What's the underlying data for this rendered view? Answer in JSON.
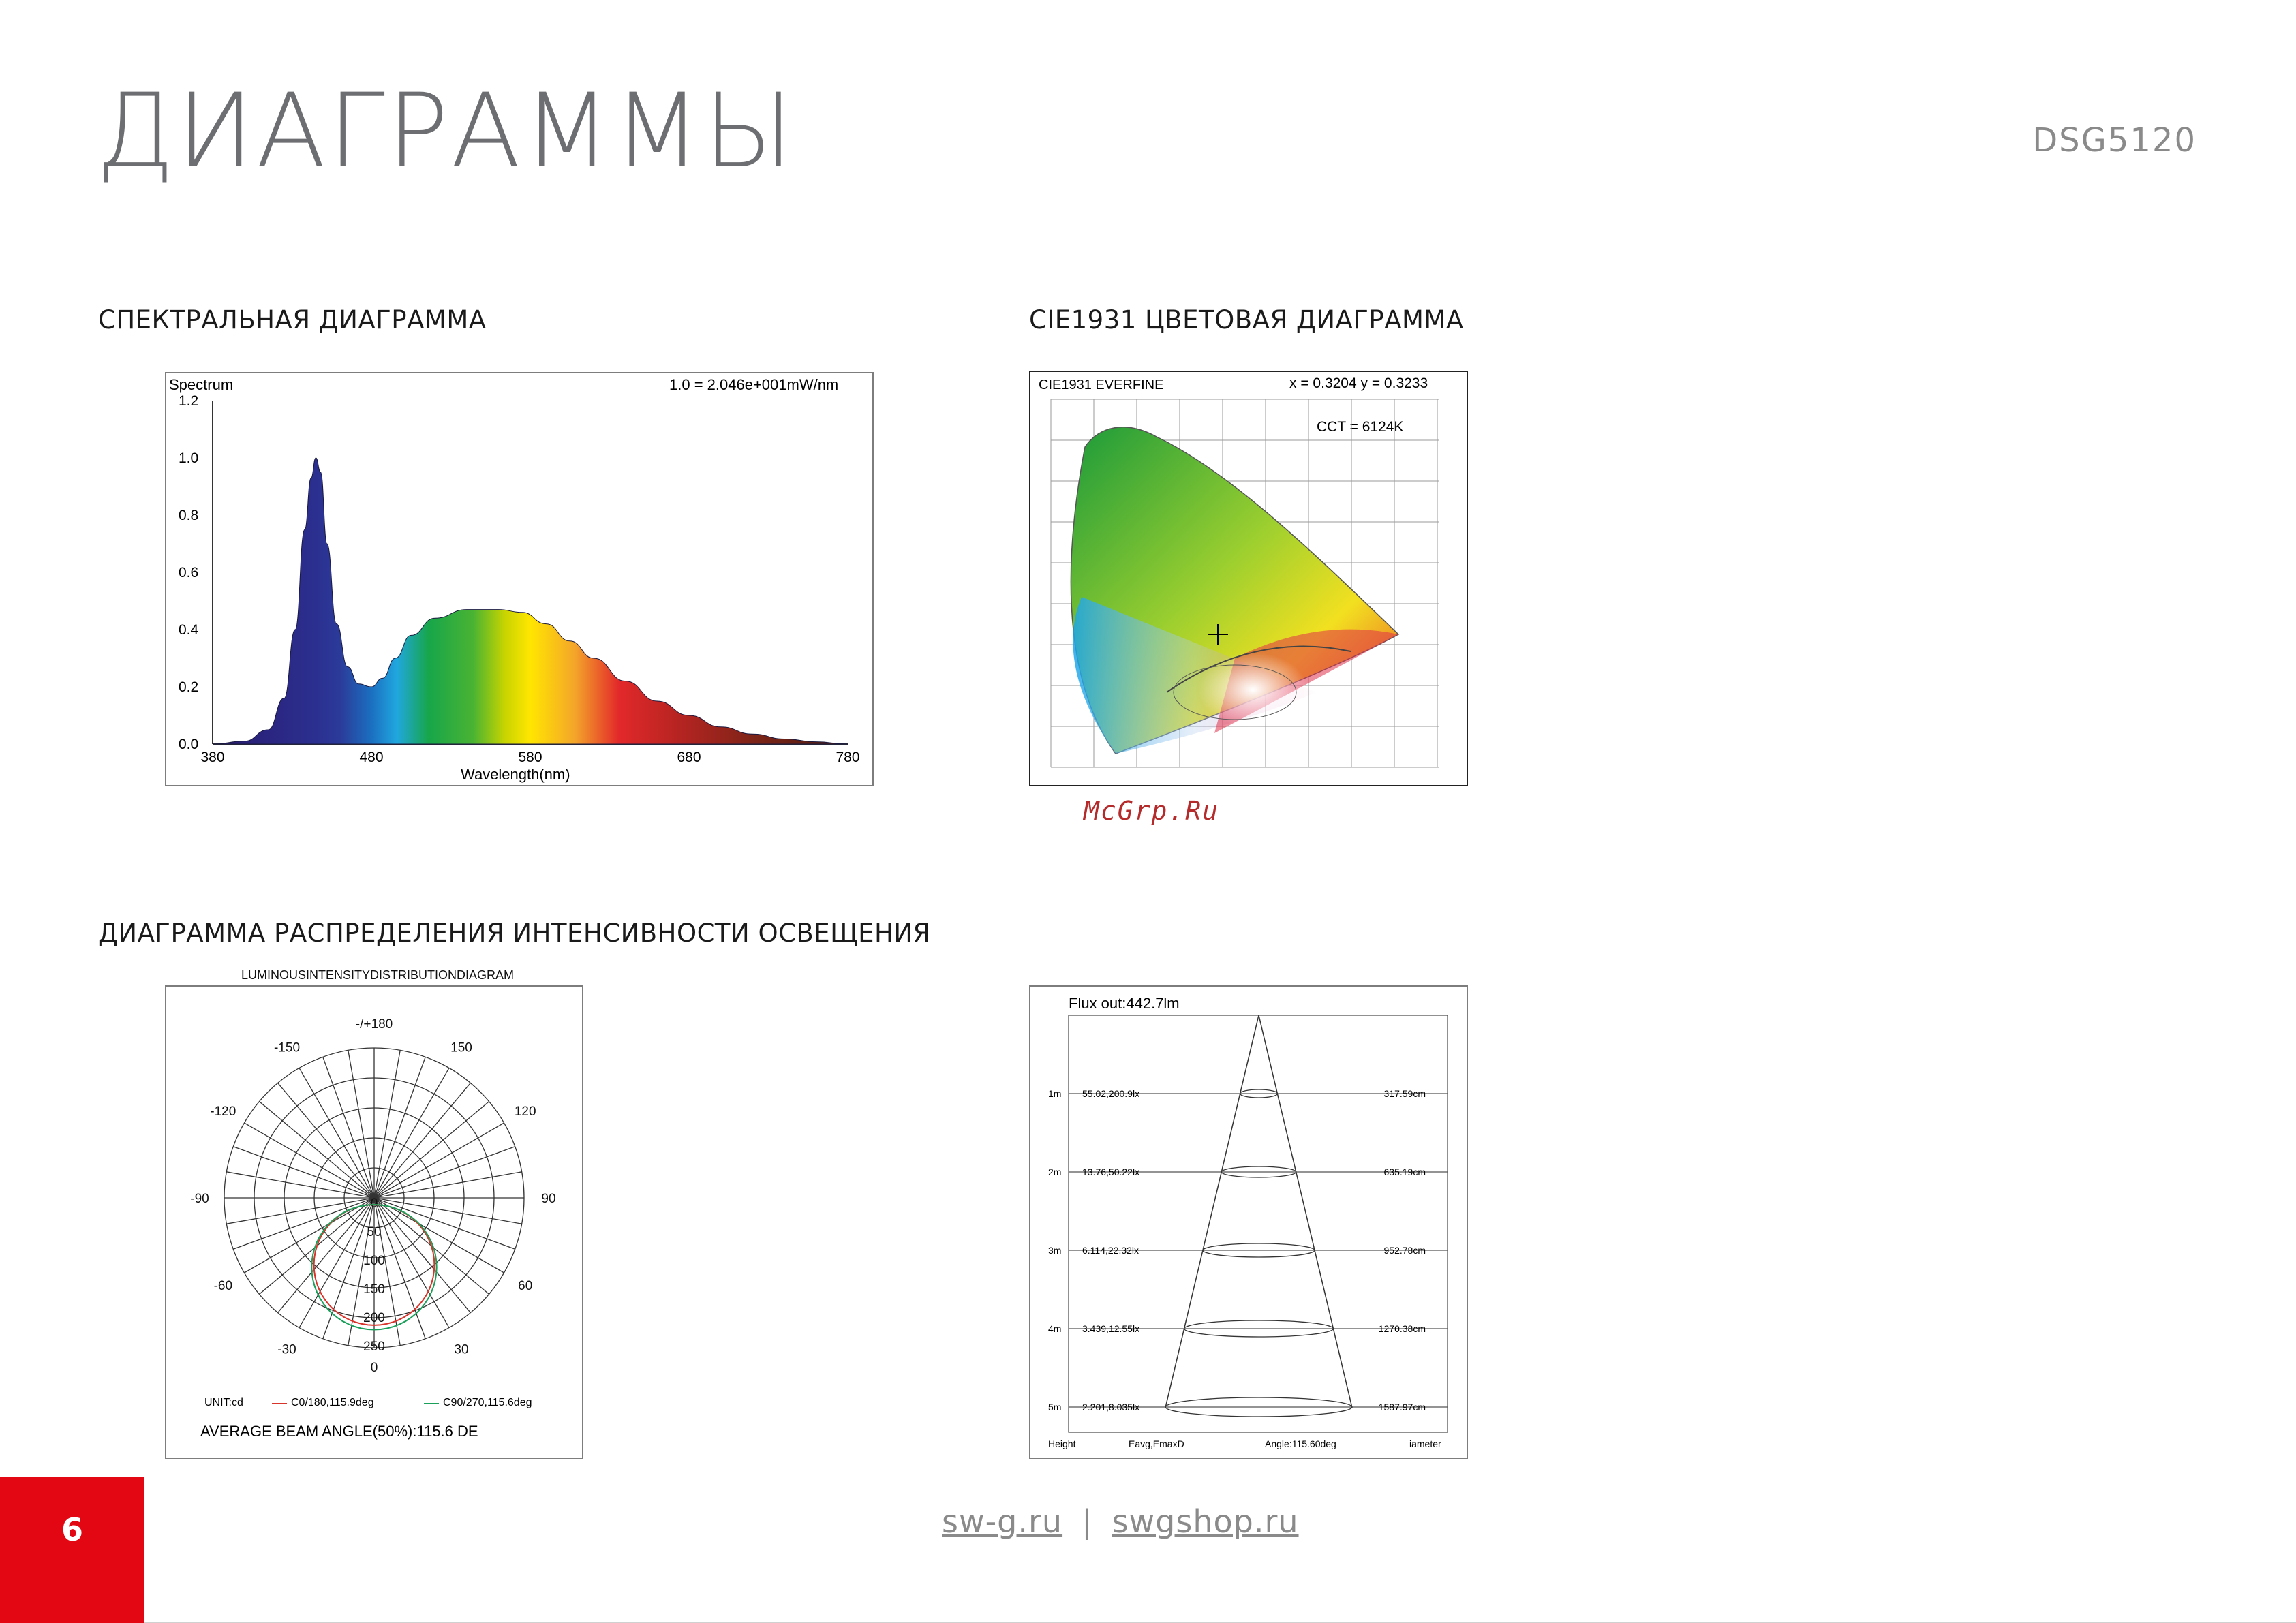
{
  "header": {
    "title": "ДИАГРАММЫ",
    "model": "DSG5120"
  },
  "sections": {
    "spectrum_title": "СПЕКТРАЛЬНАЯ ДИАГРАММА",
    "cie_title": "CIE1931 ЦВЕТОВАЯ ДИАГРАММА",
    "intensity_title": "ДИАГРАММА РАСПРЕДЕЛЕНИЯ ИНТЕНСИВНОСТИ ОСВЕЩЕНИЯ"
  },
  "watermark": "McGrp.Ru",
  "footer": {
    "page_number": "6",
    "link1": "sw-g.ru",
    "separator": "|",
    "link2": "swgshop.ru"
  },
  "chart_data": [
    {
      "type": "area",
      "label_left": "Spectrum",
      "label_right": "1.0 = 2.046e+001mW/nm",
      "xlabel": "Wavelength(nm)",
      "x_ticks": [
        "380",
        "480",
        "580",
        "680",
        "780"
      ],
      "y_ticks": [
        "0.0",
        "0.2",
        "0.4",
        "0.6",
        "0.8",
        "1.0",
        "1.2"
      ],
      "xlim": [
        380,
        780
      ],
      "ylim": [
        0,
        1.2
      ],
      "x": [
        380,
        400,
        415,
        425,
        432,
        438,
        442,
        445,
        448,
        452,
        458,
        465,
        472,
        480,
        487,
        495,
        505,
        520,
        540,
        560,
        575,
        590,
        605,
        620,
        640,
        660,
        680,
        700,
        720,
        740,
        760,
        780
      ],
      "y": [
        0.0,
        0.01,
        0.05,
        0.16,
        0.4,
        0.75,
        0.93,
        1.0,
        0.95,
        0.7,
        0.42,
        0.27,
        0.21,
        0.2,
        0.23,
        0.3,
        0.38,
        0.44,
        0.47,
        0.47,
        0.46,
        0.42,
        0.36,
        0.3,
        0.22,
        0.15,
        0.1,
        0.06,
        0.035,
        0.018,
        0.008,
        0.0
      ]
    },
    {
      "type": "other",
      "header_left": "CIE1931  EVERFINE",
      "header_coords": "x = 0.3204 y     = 0.3233",
      "header_cct": "CCT    = 6124K",
      "point": {
        "x": 0.3204,
        "y": 0.3233
      }
    },
    {
      "type": "other",
      "caption": "LUMINOUSINTENSITYDISTRIBUTIONDIAGRAM",
      "angle_labels": [
        "-/+180",
        "-150",
        "150",
        "-120",
        "120",
        "-90",
        "90",
        "-60",
        "60",
        "-30",
        "30",
        "0"
      ],
      "radial_labels": [
        "0",
        "50",
        "100",
        "150",
        "200",
        "250"
      ],
      "legend_unit": "UNIT:cd",
      "legend_c0": "C0/180,115.9deg",
      "legend_c90": "C90/270,115.6deg",
      "legend_colors": {
        "c0": "#d9342b",
        "c90": "#1aa05a"
      },
      "footer_text": "AVERAGE BEAM ANGLE(50%):115.6 DE",
      "max_intensity_cd": 210
    },
    {
      "type": "other",
      "title": "Flux out:442.7lm",
      "rows": [
        {
          "height": "1m",
          "eavg": "55.02,200.9lx",
          "diameter": "317.59cm"
        },
        {
          "height": "2m",
          "eavg": "13.76,50.22lx",
          "diameter": "635.19cm"
        },
        {
          "height": "3m",
          "eavg": "6.114,22.32lx",
          "diameter": "952.78cm"
        },
        {
          "height": "4m",
          "eavg": "3.439,12.55lx",
          "diameter": "1270.38cm"
        },
        {
          "height": "5m",
          "eavg": "2.201,8.035lx",
          "diameter": "1587.97cm"
        }
      ],
      "footer_labels": {
        "height": "Height",
        "eavg": "Eavg,EmaxD",
        "angle": "Angle:115.60deg",
        "diameter": "iameter"
      }
    }
  ]
}
